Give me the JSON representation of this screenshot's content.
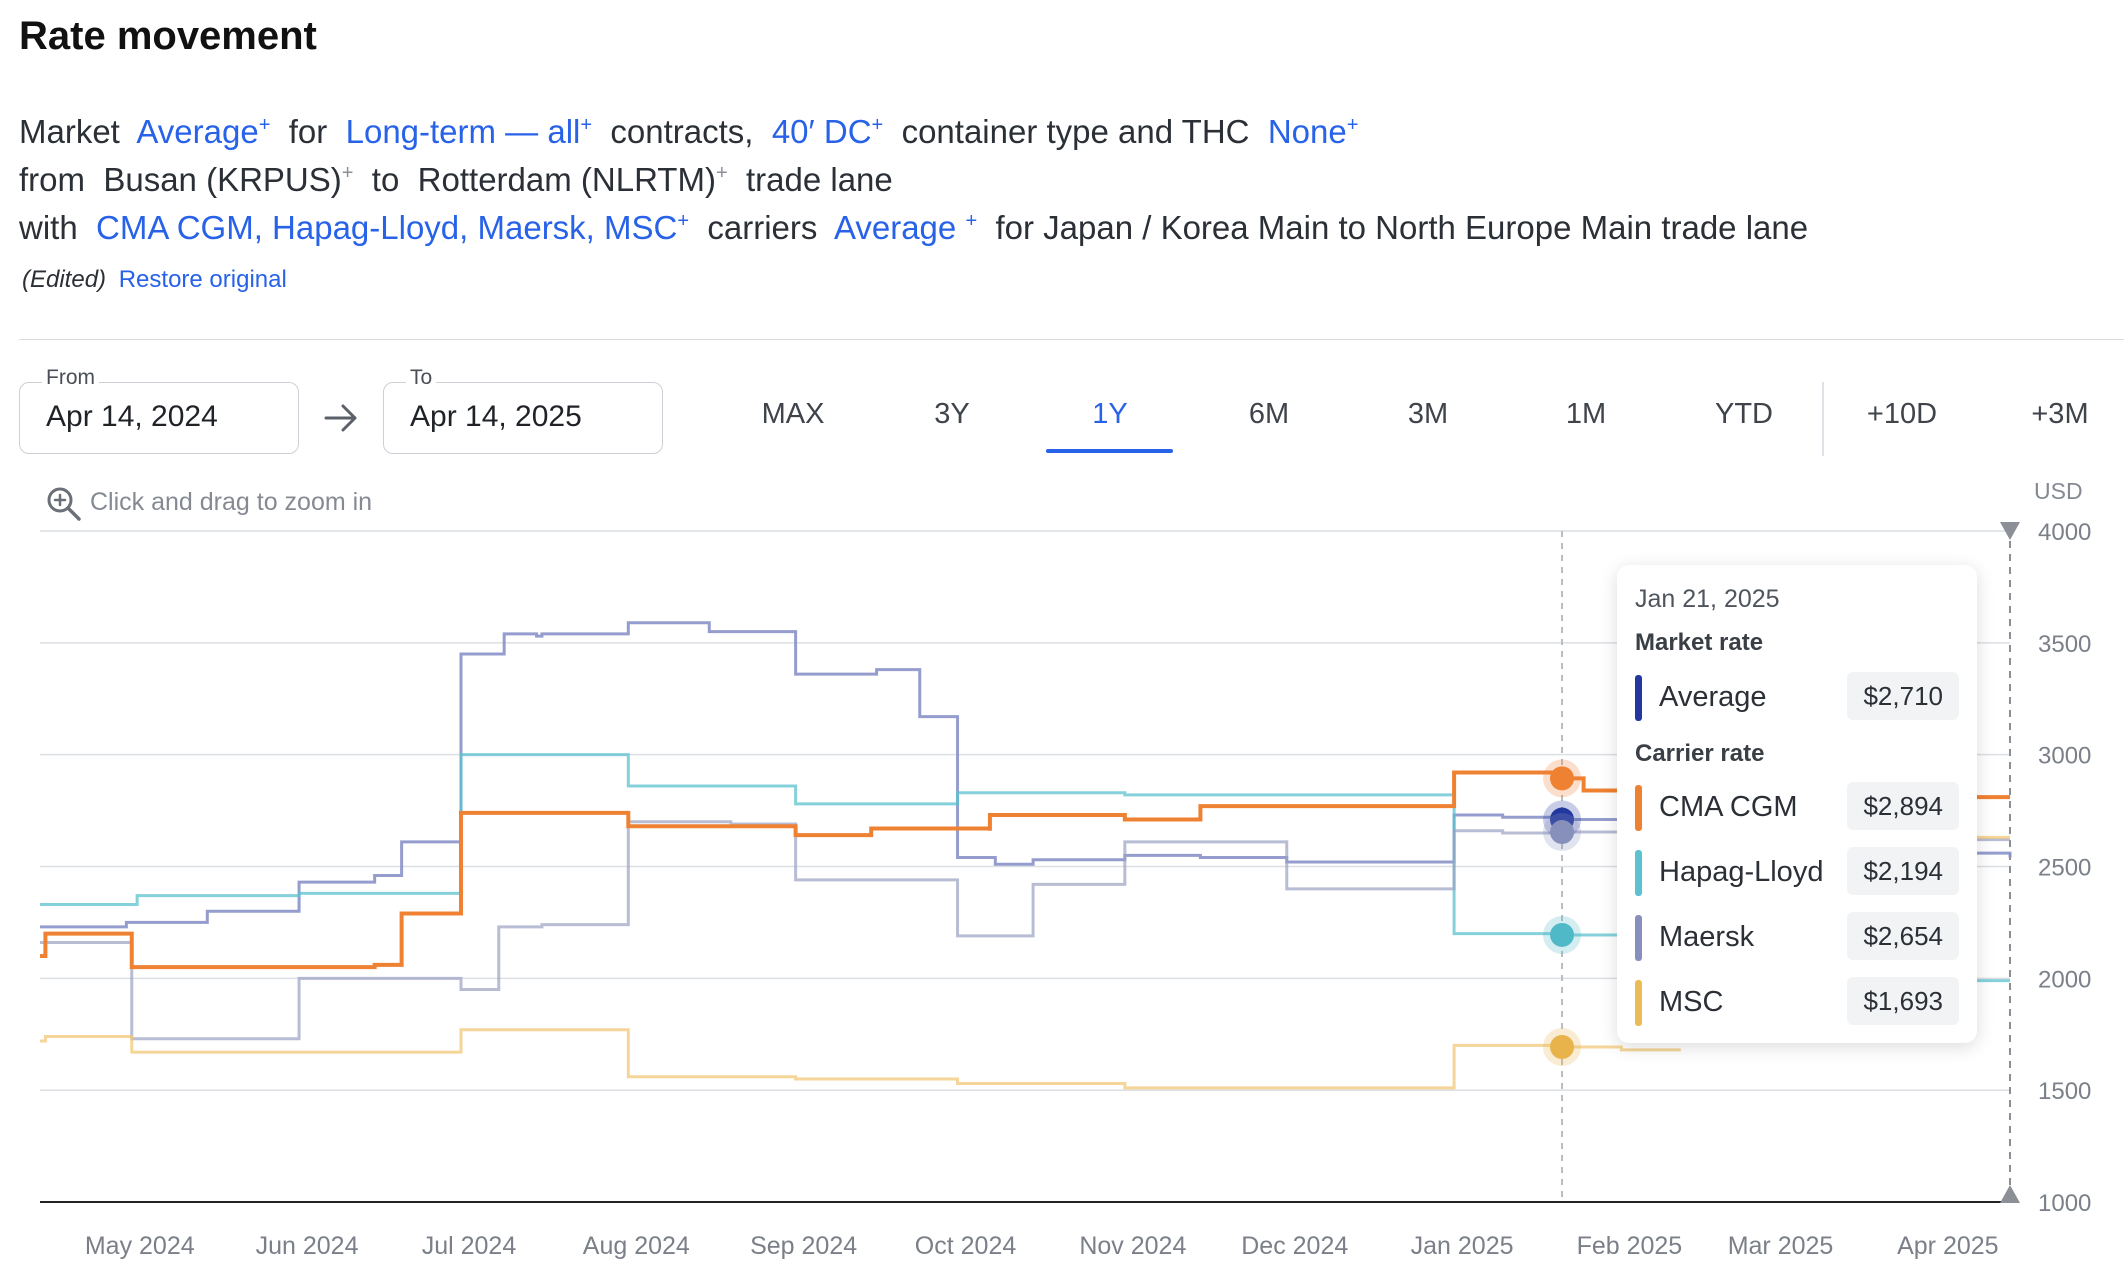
{
  "page": {
    "title": "Rate movement",
    "line1": {
      "market": "Market",
      "market_val": "Average",
      "for": "for",
      "contract_val": "Long-term — all",
      "contracts": "contracts,",
      "container_val": "40′ DC",
      "container_text": "container type and THC",
      "thc_val": "None"
    },
    "line2": {
      "from": "from",
      "origin": "Busan (KRPUS)",
      "to": "to",
      "destination": "Rotterdam (NLRTM)",
      "trade_lane": "trade lane"
    },
    "line3": {
      "with": "with",
      "carriers_val": "CMA CGM, Hapag-Lloyd, Maersk, MSC",
      "carriers": "carriers",
      "avg_val": "Average",
      "for_text": "for Japan / Korea Main to North Europe Main trade lane"
    },
    "plus": "+",
    "edited": "(Edited)",
    "restore": "Restore original",
    "from_label": "From",
    "from_value": "Apr 14, 2024",
    "to_label": "To",
    "to_value": "Apr 14, 2025",
    "ranges": [
      "MAX",
      "3Y",
      "1Y",
      "6M",
      "3M",
      "1M",
      "YTD",
      "+10D",
      "+3M"
    ],
    "active_range": "1Y",
    "zoom_hint": "Click and drag to zoom in",
    "unit": "USD",
    "accent": "#2762e8"
  },
  "tooltip": {
    "date": "Jan 21, 2025",
    "market_header": "Market rate",
    "carrier_header": "Carrier rate",
    "rows": [
      {
        "name": "Average",
        "value": "$2,710",
        "color": "#23389e"
      },
      {
        "name": "CMA CGM",
        "value": "$2,894",
        "color": "#ef8133"
      },
      {
        "name": "Hapag-Lloyd",
        "value": "$2,194",
        "color": "#5cc2cf"
      },
      {
        "name": "Maersk",
        "value": "$2,654",
        "color": "#8790ba"
      },
      {
        "name": "MSC",
        "value": "$1,693",
        "color": "#edbb55"
      }
    ]
  },
  "chart_data": {
    "type": "line",
    "step": true,
    "x_range": [
      "2024-04-14",
      "2025-04-14"
    ],
    "ylim": [
      1000,
      4000
    ],
    "yticks": [
      1000,
      1500,
      2000,
      2500,
      3000,
      3500,
      4000
    ],
    "ylabel": "USD",
    "xticks": [
      {
        "label": "May 2024",
        "date": "2024-05-01"
      },
      {
        "label": "Jun 2024",
        "date": "2024-06-01"
      },
      {
        "label": "Jul 2024",
        "date": "2024-07-01"
      },
      {
        "label": "Aug 2024",
        "date": "2024-08-01"
      },
      {
        "label": "Sep 2024",
        "date": "2024-09-01"
      },
      {
        "label": "Oct 2024",
        "date": "2024-10-01"
      },
      {
        "label": "Nov 2024",
        "date": "2024-11-01"
      },
      {
        "label": "Dec 2024",
        "date": "2024-12-01"
      },
      {
        "label": "Jan 2025",
        "date": "2025-01-01"
      },
      {
        "label": "Feb 2025",
        "date": "2025-02-01"
      },
      {
        "label": "Mar 2025",
        "date": "2025-03-01"
      },
      {
        "label": "Apr 2025",
        "date": "2025-04-01"
      }
    ],
    "grid": true,
    "crosshair_date": "2025-01-21",
    "series": [
      {
        "name": "Average",
        "color": "#8892c8",
        "width": 3,
        "opacity": 0.9,
        "points": [
          [
            "2024-04-14",
            2230
          ],
          [
            "2024-04-30",
            2250
          ],
          [
            "2024-05-15",
            2300
          ],
          [
            "2024-06-01",
            2430
          ],
          [
            "2024-06-15",
            2460
          ],
          [
            "2024-06-20",
            2610
          ],
          [
            "2024-06-28",
            2610
          ],
          [
            "2024-07-01",
            3450
          ],
          [
            "2024-07-09",
            3540
          ],
          [
            "2024-07-15",
            3530
          ],
          [
            "2024-07-16",
            3540
          ],
          [
            "2024-07-25",
            3540
          ],
          [
            "2024-08-01",
            3590
          ],
          [
            "2024-08-16",
            3550
          ],
          [
            "2024-09-01",
            3540
          ],
          [
            "2024-09-01",
            3360
          ],
          [
            "2024-09-15",
            3360
          ],
          [
            "2024-09-16",
            3380
          ],
          [
            "2024-09-24",
            3170
          ],
          [
            "2024-10-01",
            2540
          ],
          [
            "2024-10-08",
            2510
          ],
          [
            "2024-10-15",
            2530
          ],
          [
            "2024-11-01",
            2550
          ],
          [
            "2024-11-15",
            2540
          ],
          [
            "2024-12-01",
            2520
          ],
          [
            "2024-12-31",
            2520
          ],
          [
            "2025-01-01",
            2730
          ],
          [
            "2025-01-10",
            2720
          ],
          [
            "2025-01-21",
            2710
          ],
          [
            "2025-02-01",
            2710
          ]
        ],
        "tail": [
          [
            "2025-04-06",
            2560
          ],
          [
            "2025-04-14",
            2540
          ]
        ]
      },
      {
        "name": "Hapag-Lloyd",
        "color": "#5cc2cf",
        "width": 3,
        "opacity": 0.75,
        "points": [
          [
            "2024-04-14",
            2330
          ],
          [
            "2024-05-01",
            2330
          ],
          [
            "2024-05-02",
            2370
          ],
          [
            "2024-06-01",
            2370
          ],
          [
            "2024-06-01",
            2380
          ],
          [
            "2024-06-30",
            2380
          ],
          [
            "2024-07-01",
            3000
          ],
          [
            "2024-08-01",
            3000
          ],
          [
            "2024-08-01",
            2860
          ],
          [
            "2024-09-01",
            2860
          ],
          [
            "2024-09-01",
            2780
          ],
          [
            "2024-10-01",
            2780
          ],
          [
            "2024-10-01",
            2830
          ],
          [
            "2024-11-01",
            2830
          ],
          [
            "2024-11-01",
            2820
          ],
          [
            "2024-12-31",
            2820
          ],
          [
            "2025-01-01",
            2200
          ],
          [
            "2025-01-21",
            2194
          ],
          [
            "2025-02-01",
            2194
          ]
        ],
        "tail": [
          [
            "2025-04-06",
            1990
          ],
          [
            "2025-04-14",
            1990
          ]
        ]
      },
      {
        "name": "Maersk",
        "color": "#9aa1c2",
        "width": 3,
        "opacity": 0.7,
        "points": [
          [
            "2024-04-14",
            2160
          ],
          [
            "2024-04-30",
            2160
          ],
          [
            "2024-05-01",
            1730
          ],
          [
            "2024-05-15",
            1730
          ],
          [
            "2024-06-01",
            1730
          ],
          [
            "2024-06-01",
            2000
          ],
          [
            "2024-06-28",
            2000
          ],
          [
            "2024-07-01",
            1950
          ],
          [
            "2024-07-08",
            1950
          ],
          [
            "2024-07-08",
            2230
          ],
          [
            "2024-07-15",
            2230
          ],
          [
            "2024-07-16",
            2240
          ],
          [
            "2024-08-01",
            2240
          ],
          [
            "2024-08-01",
            2700
          ],
          [
            "2024-08-20",
            2690
          ],
          [
            "2024-09-01",
            2690
          ],
          [
            "2024-09-01",
            2440
          ],
          [
            "2024-10-01",
            2440
          ],
          [
            "2024-10-01",
            2190
          ],
          [
            "2024-10-15",
            2190
          ],
          [
            "2024-10-15",
            2420
          ],
          [
            "2024-11-01",
            2420
          ],
          [
            "2024-11-01",
            2610
          ],
          [
            "2024-12-01",
            2610
          ],
          [
            "2024-12-01",
            2400
          ],
          [
            "2024-12-31",
            2400
          ],
          [
            "2025-01-01",
            2660
          ],
          [
            "2025-01-10",
            2650
          ],
          [
            "2025-01-21",
            2654
          ],
          [
            "2025-02-01",
            2654
          ]
        ],
        "tail": [
          [
            "2025-04-06",
            2620
          ],
          [
            "2025-04-14",
            2620
          ]
        ]
      },
      {
        "name": "MSC",
        "color": "#f2c776",
        "width": 3,
        "opacity": 0.75,
        "points": [
          [
            "2024-04-14",
            1720
          ],
          [
            "2024-04-15",
            1740
          ],
          [
            "2024-05-01",
            1740
          ],
          [
            "2024-05-01",
            1670
          ],
          [
            "2024-05-15",
            1670
          ],
          [
            "2024-06-30",
            1670
          ],
          [
            "2024-07-01",
            1770
          ],
          [
            "2024-08-01",
            1770
          ],
          [
            "2024-08-01",
            1560
          ],
          [
            "2024-09-01",
            1560
          ],
          [
            "2024-09-01",
            1550
          ],
          [
            "2024-10-01",
            1550
          ],
          [
            "2024-10-01",
            1530
          ],
          [
            "2024-11-01",
            1530
          ],
          [
            "2024-11-01",
            1510
          ],
          [
            "2024-12-31",
            1510
          ],
          [
            "2025-01-01",
            1700
          ],
          [
            "2025-01-21",
            1693
          ],
          [
            "2025-02-01",
            1693
          ],
          [
            "2025-02-01",
            1680
          ],
          [
            "2025-02-12",
            1680
          ]
        ],
        "tail": [
          [
            "2025-04-06",
            2630
          ],
          [
            "2025-04-14",
            2630
          ]
        ]
      },
      {
        "name": "CMA CGM",
        "color": "#ef8133",
        "width": 4,
        "opacity": 1,
        "points": [
          [
            "2024-04-14",
            2100
          ],
          [
            "2024-04-15",
            2200
          ],
          [
            "2024-05-01",
            2200
          ],
          [
            "2024-05-01",
            2050
          ],
          [
            "2024-05-15",
            2050
          ],
          [
            "2024-06-15",
            2060
          ],
          [
            "2024-06-20",
            2060
          ],
          [
            "2024-06-20",
            2290
          ],
          [
            "2024-06-30",
            2290
          ],
          [
            "2024-07-01",
            2740
          ],
          [
            "2024-08-01",
            2740
          ],
          [
            "2024-08-01",
            2680
          ],
          [
            "2024-09-01",
            2680
          ],
          [
            "2024-09-01",
            2640
          ],
          [
            "2024-09-15",
            2640
          ],
          [
            "2024-09-15",
            2670
          ],
          [
            "2024-10-01",
            2670
          ],
          [
            "2024-10-07",
            2660
          ],
          [
            "2024-10-07",
            2730
          ],
          [
            "2024-11-01",
            2730
          ],
          [
            "2024-11-01",
            2710
          ],
          [
            "2024-11-15",
            2710
          ],
          [
            "2024-11-15",
            2770
          ],
          [
            "2024-12-31",
            2770
          ],
          [
            "2025-01-01",
            2920
          ],
          [
            "2025-01-21",
            2894
          ],
          [
            "2025-01-25",
            2894
          ],
          [
            "2025-01-25",
            2840
          ],
          [
            "2025-02-01",
            2840
          ]
        ],
        "tail": [
          [
            "2025-04-06",
            2810
          ],
          [
            "2025-04-14",
            2810
          ]
        ]
      }
    ]
  }
}
